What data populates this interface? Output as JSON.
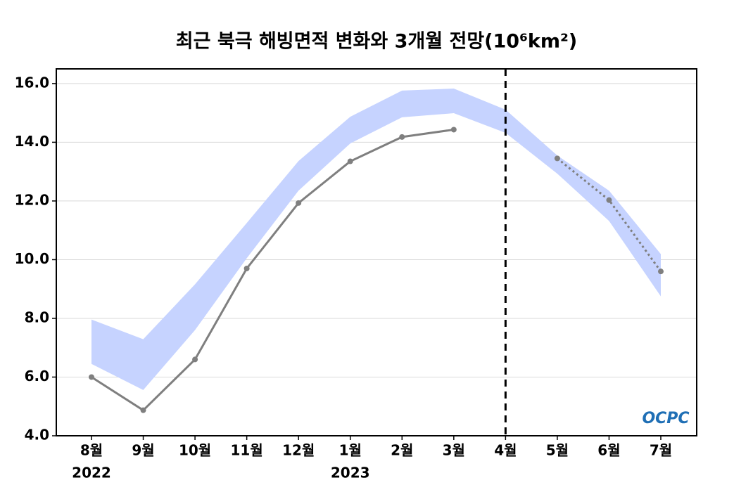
{
  "chart_data": {
    "type": "line",
    "title": "최근 북극 해빙면적 변화와 3개월 전망(10⁶km²)",
    "categories": [
      "8월",
      "9월",
      "10월",
      "11월",
      "12월",
      "1월",
      "2월",
      "3월",
      "4월",
      "5월",
      "6월",
      "7월"
    ],
    "year_labels": [
      "2022",
      null,
      null,
      null,
      null,
      "2023",
      null,
      null,
      null,
      null,
      null,
      null
    ],
    "band": {
      "color": "#c6d3ff",
      "upper": [
        7.96,
        7.29,
        9.16,
        11.25,
        13.36,
        14.87,
        15.76,
        15.83,
        15.11,
        13.55,
        12.35,
        10.19
      ],
      "lower": [
        6.45,
        5.56,
        7.6,
        10.05,
        12.35,
        13.96,
        14.85,
        14.99,
        14.32,
        12.93,
        11.32,
        8.75
      ]
    },
    "series": [
      {
        "color": "#7f7f7f",
        "style": "solid",
        "values": [
          6.0,
          4.87,
          6.6,
          9.7,
          11.93,
          13.35,
          14.18,
          14.43,
          null,
          null,
          null,
          null
        ]
      },
      {
        "color": "#7f7f7f",
        "style": "dotted",
        "values": [
          null,
          null,
          null,
          null,
          null,
          null,
          null,
          null,
          null,
          13.45,
          12.03,
          9.6
        ]
      }
    ],
    "vline": "4월",
    "ylim": [
      4,
      16.5
    ],
    "yticks": [
      {
        "value": 4,
        "label": "4.0"
      },
      {
        "value": 6,
        "label": "6.0"
      },
      {
        "value": 8,
        "label": "8.0"
      },
      {
        "value": 10,
        "label": "10.0"
      },
      {
        "value": 12,
        "label": "12.0"
      },
      {
        "value": 14,
        "label": "14.0"
      },
      {
        "value": 16,
        "label": "16.0"
      }
    ],
    "grid": true,
    "logo": "OCPC"
  }
}
